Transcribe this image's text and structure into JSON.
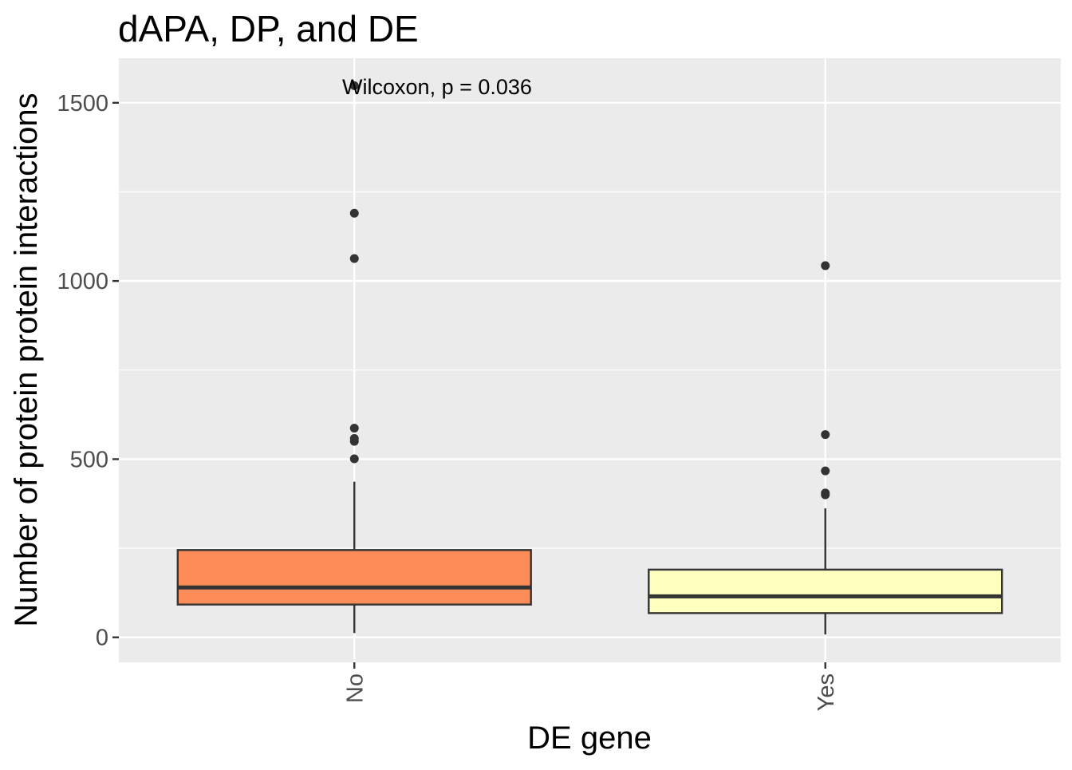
{
  "chart_data": {
    "type": "boxplot",
    "title": "dAPA, DP, and DE",
    "xlabel": "DE gene",
    "ylabel": "Number of protein protein interactions",
    "categories": [
      "No",
      "Yes"
    ],
    "ylim": [
      -70,
      1625
    ],
    "y_ticks": [
      0,
      500,
      1000,
      1500
    ],
    "grid": true,
    "annotation": "Wilcoxon, p = 0.036",
    "boxes": [
      {
        "category": "No",
        "fill": "#fc8d59",
        "whisker_low": 12,
        "q1": 92,
        "median": 140,
        "q3": 245,
        "whisker_high": 437,
        "outliers": [
          501,
          550,
          558,
          587,
          1063,
          1190,
          1548
        ]
      },
      {
        "category": "Yes",
        "fill": "#ffffbf",
        "whisker_low": 8,
        "q1": 68,
        "median": 115,
        "q3": 190,
        "whisker_high": 362,
        "outliers": [
          400,
          405,
          467,
          569,
          1043
        ]
      }
    ]
  },
  "colors": {
    "panel_background": "#ebebeb",
    "grid": "#ffffff",
    "box_outline": "#333333",
    "point": "#333333",
    "tick_label": "#4d4d4d",
    "text": "#000000"
  }
}
